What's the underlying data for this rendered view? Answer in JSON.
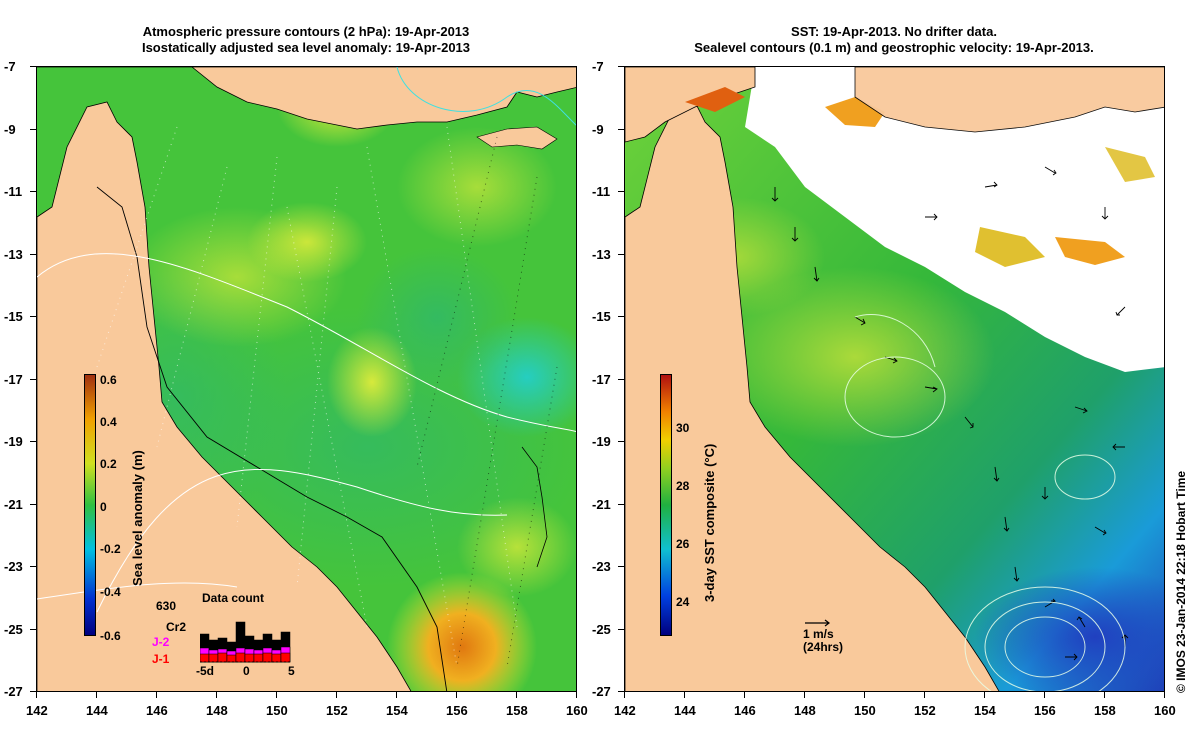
{
  "left_panel": {
    "title_line1": "Atmospheric pressure contours (2 hPa): 19-Apr-2013",
    "title_line2": "Isostatically adjusted sea level anomaly: 19-Apr-2013",
    "colorbar": {
      "title": "Sea level anomaly (m)",
      "min": -0.6,
      "max": 0.6,
      "ticks": [
        "0.6",
        "0.4",
        "0.2",
        "0",
        "-0.2",
        "-0.4",
        "-0.6"
      ]
    },
    "data_count": {
      "title": "Data count",
      "max_label": "630",
      "legend": [
        {
          "label": "Cr2",
          "color": "#000000"
        },
        {
          "label": "J-2",
          "color": "#ff00ff"
        },
        {
          "label": "J-1",
          "color": "#ff0000"
        }
      ],
      "x_ticks": [
        "-5d",
        "0",
        "5"
      ]
    }
  },
  "right_panel": {
    "title_line1": "SST: 19-Apr-2013. No drifter data.",
    "title_line2": "Sealevel contours (0.1 m) and geostrophic velocity: 19-Apr-2013.",
    "colorbar": {
      "title": "3-day SST composite (°C)",
      "min": 22.5,
      "max": 31.5,
      "ticks": [
        "30",
        "28",
        "26",
        "24"
      ]
    },
    "velocity_scale": {
      "line1": "1 m/s",
      "line2": "(24hrs)"
    }
  },
  "axes": {
    "lon_ticks": [
      "142",
      "144",
      "146",
      "148",
      "150",
      "152",
      "154",
      "156",
      "158",
      "160"
    ],
    "lat_ticks": [
      "-7",
      "-9",
      "-11",
      "-13",
      "-15",
      "-17",
      "-19",
      "-21",
      "-23",
      "-25",
      "-27"
    ],
    "lon_range": [
      142,
      160
    ],
    "lat_range": [
      -27,
      -7
    ]
  },
  "credit": "© IMOS 23-Jan-2014 22:18 Hobart Time",
  "colors": {
    "land": "#f9c99b",
    "ocean_green": "#3fc23f",
    "no_data": "#ffffff"
  }
}
